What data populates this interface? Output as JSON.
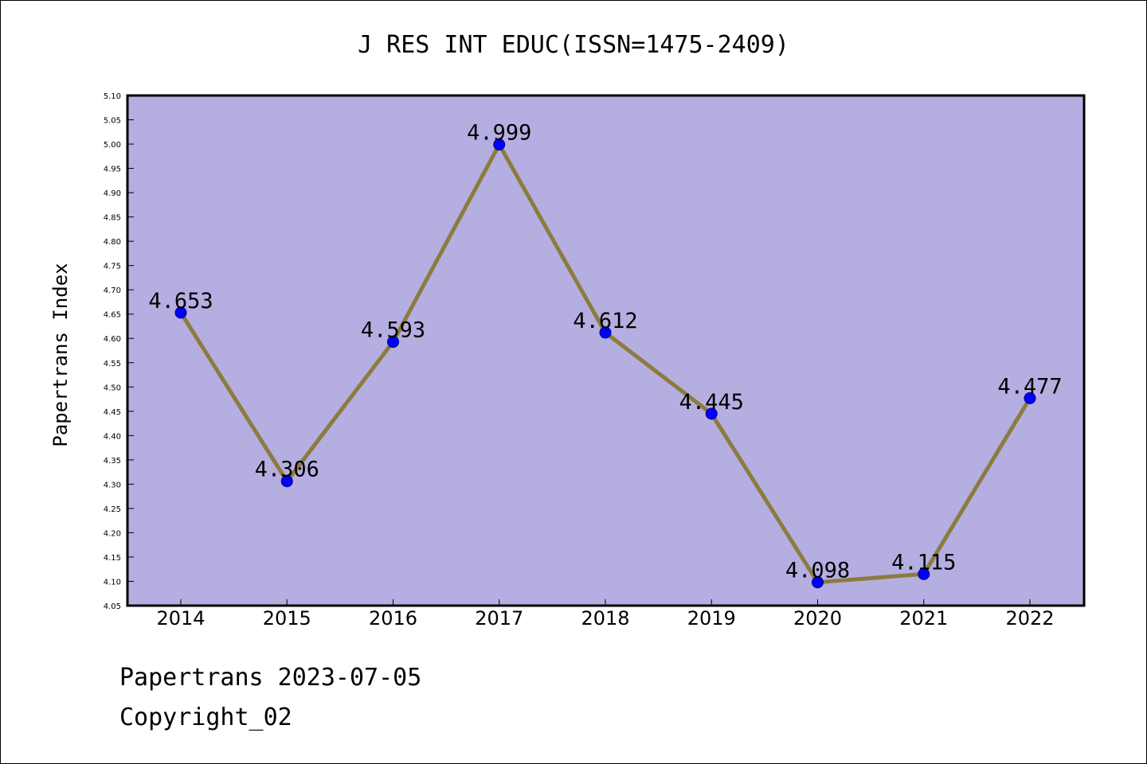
{
  "chart_data": {
    "type": "line",
    "title": "J RES INT EDUC(ISSN=1475-2409)",
    "ylabel": "Papertrans Index",
    "xlabel": "",
    "categories": [
      "2014",
      "2015",
      "2016",
      "2017",
      "2018",
      "2019",
      "2020",
      "2021",
      "2022"
    ],
    "values": [
      4.653,
      4.306,
      4.593,
      4.999,
      4.612,
      4.445,
      4.098,
      4.115,
      4.477
    ],
    "data_labels": [
      "4.653",
      "4.306",
      "4.593",
      "4.999",
      "4.612",
      "4.445",
      "4.098",
      "4.115",
      "4.477"
    ],
    "ylim": [
      4.05,
      5.1
    ],
    "yticks": [
      "4.05",
      "4.10",
      "4.15",
      "4.20",
      "4.25",
      "4.30",
      "4.35",
      "4.40",
      "4.45",
      "4.50",
      "4.55",
      "4.60",
      "4.65",
      "4.70",
      "4.75",
      "4.80",
      "4.85",
      "4.90",
      "4.95",
      "5.00",
      "5.05",
      "5.10"
    ],
    "grid": false,
    "colors": {
      "plot_background": "#b5aee1",
      "line": "#8c7b3e",
      "marker_fill": "#0000ff",
      "marker_edge": "#000080"
    }
  },
  "footer": {
    "line1": "Papertrans 2023-07-05",
    "line2": "Copyright_02"
  }
}
